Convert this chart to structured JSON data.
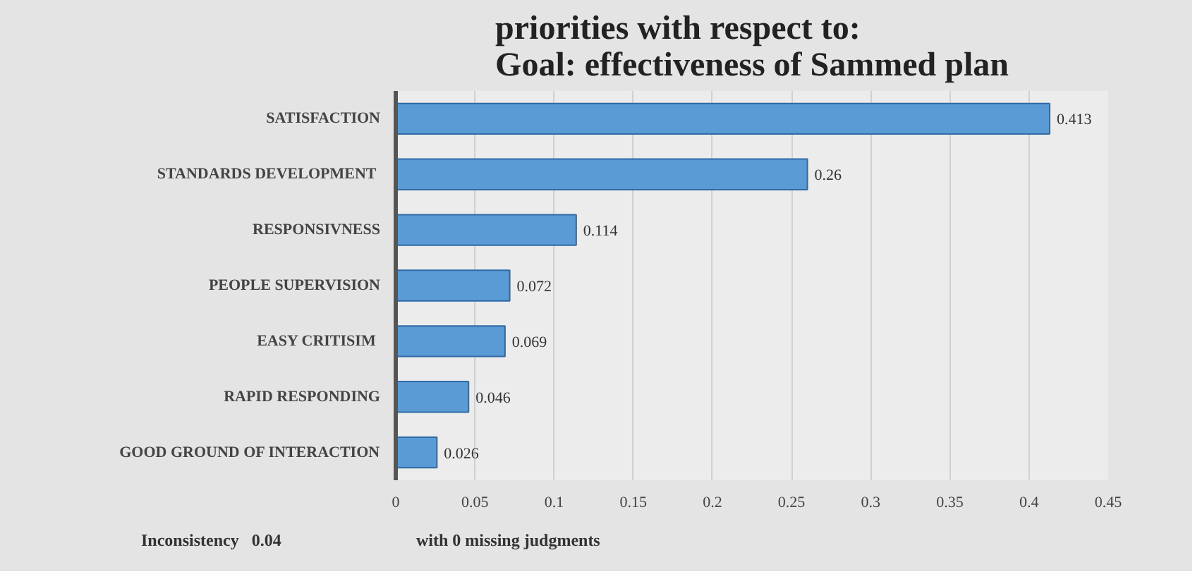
{
  "chart_data": {
    "type": "bar",
    "orientation": "horizontal",
    "title": "priorities with respect to:\nGoal: effectiveness of Sammed plan",
    "categories": [
      "SATISFACTION",
      "STANDARDS  DEVELOPMENT",
      "RESPONSIVNESS",
      "PEOPLE SUPERVISION",
      "EASY  CRITISIM",
      "RAPID RESPONDING",
      "GOOD GROUND OF INTERACTION"
    ],
    "values": [
      0.413,
      0.26,
      0.114,
      0.072,
      0.069,
      0.046,
      0.026
    ],
    "color": "#5b9bd5",
    "data_labels": true,
    "xlim": [
      0,
      0.45
    ],
    "xticks": [
      0,
      0.05,
      0.1,
      0.15,
      0.2,
      0.25,
      0.3,
      0.35,
      0.4,
      0.45
    ],
    "grid": "x",
    "annotations": [
      "Inconsistency   0.04",
      "with 0 missing judgments"
    ]
  }
}
